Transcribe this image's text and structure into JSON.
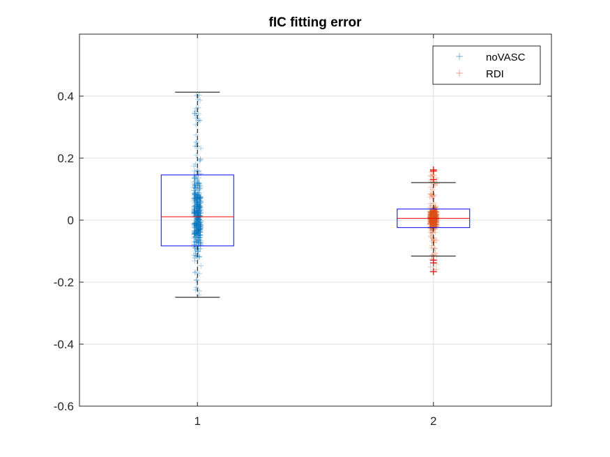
{
  "chart_data": {
    "type": "boxplot",
    "title": "fIC fitting error",
    "xlabel": "",
    "ylabel": "",
    "x_ticks": [
      "1",
      "2"
    ],
    "y_ticks": [
      "-0.6",
      "-0.4",
      "-0.2",
      "0",
      "0.2",
      "0.4"
    ],
    "ylim": [
      -0.6,
      0.6
    ],
    "grid": true,
    "legend": {
      "placement": "top-right",
      "entries": [
        {
          "label": "noVASC",
          "color": "#0072BD",
          "marker": "+"
        },
        {
          "label": "RDI",
          "color": "#D95319",
          "marker": "+"
        }
      ]
    },
    "boxes": [
      {
        "position": 1,
        "q1": -0.083,
        "median": 0.011,
        "q3": 0.146,
        "whisker_low": -0.249,
        "whisker_high": 0.413,
        "outliers": [],
        "scatter_series": "noVASC",
        "scatter_range": [
          -0.249,
          0.413
        ]
      },
      {
        "position": 2,
        "q1": -0.024,
        "median": 0.006,
        "q3": 0.036,
        "whisker_low": -0.116,
        "whisker_high": 0.121,
        "outliers": [
          0.158,
          0.162,
          0.131,
          -0.129,
          -0.138,
          -0.166
        ],
        "scatter_series": "RDI",
        "scatter_range": [
          -0.166,
          0.162
        ]
      }
    ],
    "colors": {
      "box": "#0000FF",
      "median": "#FF0000",
      "whisker": "#000000",
      "outlier": "#FF0000",
      "grid": "#DFDFDF",
      "axis": "#262626"
    }
  }
}
